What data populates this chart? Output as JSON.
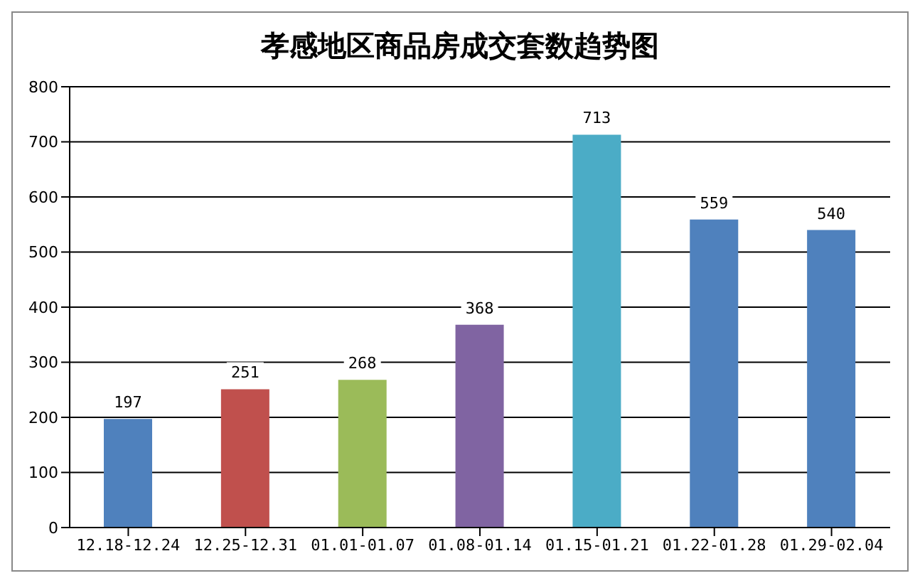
{
  "chart_data": {
    "type": "bar",
    "title": "孝感地区商品房成交套数趋势图",
    "categories": [
      "12.18-12.24",
      "12.25-12.31",
      "01.01-01.07",
      "01.08-01.14",
      "01.15-01.21",
      "01.22-01.28",
      "01.29-02.04"
    ],
    "values": [
      197,
      251,
      268,
      368,
      713,
      559,
      540
    ],
    "colors": [
      "#4f81bd",
      "#c0504d",
      "#9bbb59",
      "#8064a2",
      "#4bacc6",
      "#4f81bd",
      "#4f81bd"
    ],
    "ylim": [
      0,
      800
    ],
    "yticks": [
      0,
      100,
      200,
      300,
      400,
      500,
      600,
      700,
      800
    ],
    "grid": "y",
    "data_labels": true
  }
}
